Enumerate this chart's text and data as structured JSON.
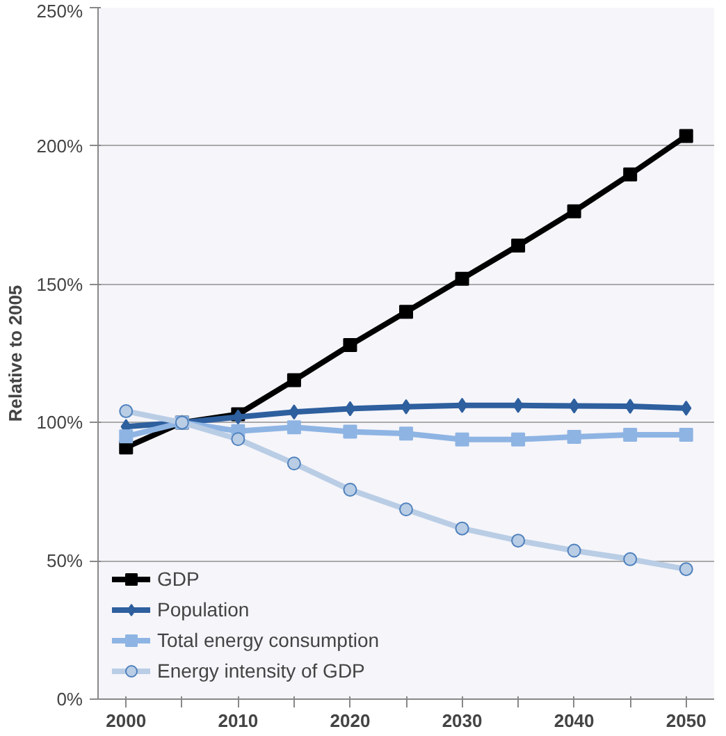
{
  "chart_data": {
    "type": "line",
    "ylabel": "Relative to 2005",
    "categories": [
      "2000",
      null,
      "2010",
      null,
      "2020",
      null,
      "2030",
      null,
      "2040",
      null,
      "2050"
    ],
    "series": [
      {
        "name": "GDP",
        "color": "#000000",
        "marker": "square",
        "values": [
          91,
          100,
          103,
          115.3,
          128,
          140,
          152,
          164,
          176.4,
          189.7,
          203.6
        ]
      },
      {
        "name": "Population",
        "color": "#2e5f9e",
        "marker": "diamond",
        "values": [
          98.5,
          100,
          102,
          103.8,
          105,
          105.7,
          106.2,
          106.2,
          106,
          105.9,
          105.2
        ]
      },
      {
        "name": "Total energy consumption",
        "color": "#8eb4e3",
        "marker": "cross",
        "values": [
          95,
          100,
          96.9,
          98.3,
          96.7,
          96,
          93.9,
          93.9,
          94.8,
          95.6,
          95.6
        ]
      },
      {
        "name": "Energy intensity of GDP",
        "color": "#b9cde5",
        "marker": "circle",
        "values": [
          104.1,
          100,
          94,
          85.2,
          75.7,
          68.6,
          61.7,
          57.3,
          53.7,
          50.6,
          47
        ]
      }
    ],
    "ylim": [
      0,
      250
    ],
    "yticks": [
      {
        "value": 0,
        "label": "0%"
      },
      {
        "value": 50,
        "label": "50%"
      },
      {
        "value": 100,
        "label": "100%"
      },
      {
        "value": 150,
        "label": "150%"
      },
      {
        "value": 200,
        "label": "200%"
      },
      {
        "value": 250,
        "label": "250%"
      }
    ],
    "grid": "y",
    "legend": "bottom left",
    "line_style": "solid"
  }
}
